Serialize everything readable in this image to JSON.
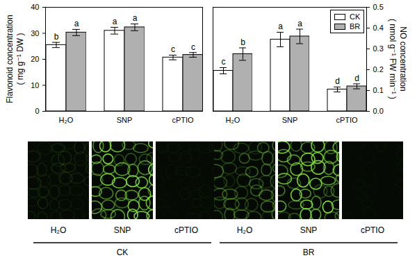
{
  "chart_data": [
    {
      "type": "bar",
      "y_label": [
        "Flavonoid concentration",
        "( mg g⁻¹ DW )"
      ],
      "categories": [
        "H₂O",
        "SNP",
        "cPTIO"
      ],
      "series": [
        {
          "name": "CK",
          "color": "#ffffff",
          "values": [
            25.5,
            31.0,
            20.7
          ],
          "errors": [
            1.0,
            1.3,
            0.9
          ],
          "letters": [
            "b",
            "a",
            "c"
          ]
        },
        {
          "name": "BR",
          "color": "#b0b0b0",
          "values": [
            30.3,
            32.3,
            21.7
          ],
          "errors": [
            1.2,
            1.3,
            0.9
          ],
          "letters": [
            "a",
            "a",
            "c"
          ]
        }
      ],
      "ylim": [
        0,
        40
      ],
      "yticks": [
        0,
        10,
        20,
        30,
        40
      ]
    },
    {
      "type": "bar",
      "y_label": [
        "NO concentration",
        "( nmol g⁻¹ FW min⁻¹ )"
      ],
      "categories": [
        "H₂O",
        "SNP",
        "cPTIO"
      ],
      "series": [
        {
          "name": "CK",
          "color": "#ffffff",
          "axis": "y2",
          "values": [
            0.195,
            0.345,
            0.105
          ],
          "errors": [
            0.015,
            0.035,
            0.012
          ],
          "letters": [
            "c",
            "a",
            "d"
          ]
        },
        {
          "name": "BR",
          "color": "#b0b0b0",
          "axis": "y2",
          "values": [
            0.275,
            0.36,
            0.12
          ],
          "errors": [
            0.03,
            0.035,
            0.012
          ],
          "letters": [
            "b",
            "a",
            "d"
          ]
        }
      ],
      "y2lim": [
        0,
        0.5
      ],
      "y2ticks": [
        {
          "value": 0,
          "label": "0.0"
        },
        0.1,
        0.2,
        0.3,
        0.4,
        0.5
      ],
      "legend": "top-right"
    }
  ],
  "image_panels": [
    {
      "group": "CK",
      "labels": [
        "H₂O",
        "SNP",
        "cPTIO"
      ]
    },
    {
      "group": "BR",
      "labels": [
        "H₂O",
        "SNP",
        "cPTIO"
      ]
    }
  ]
}
